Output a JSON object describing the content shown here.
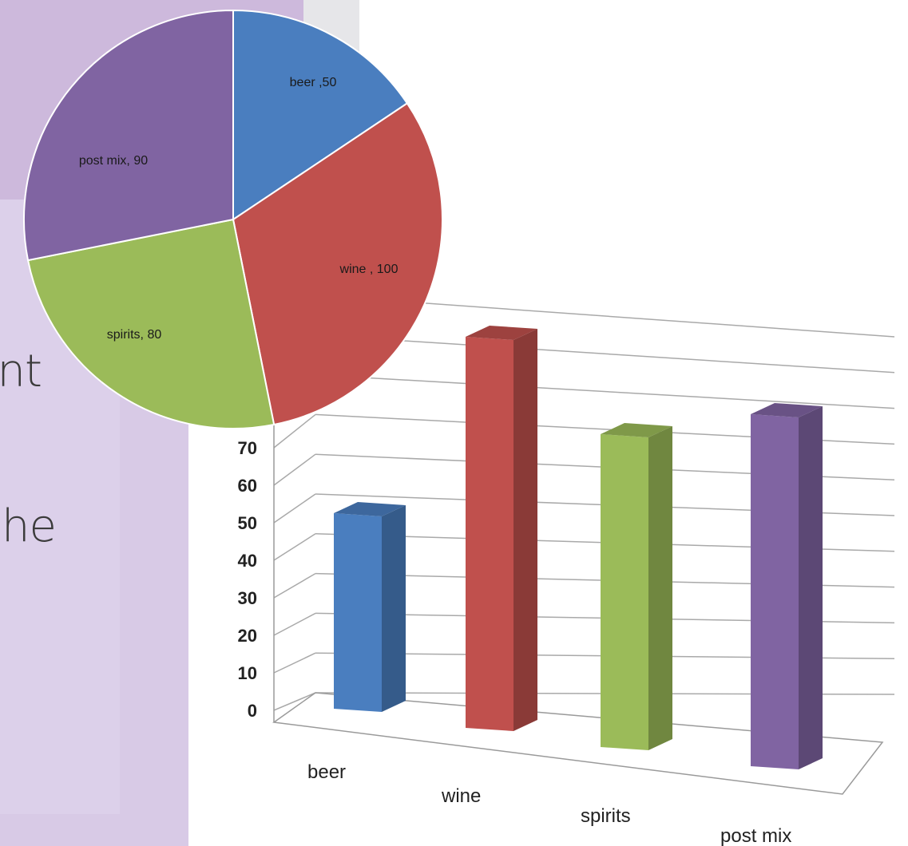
{
  "slide": {
    "fragment_1": "nt",
    "fragment_2": "he"
  },
  "chart_data": [
    {
      "type": "pie",
      "categories": [
        "beer",
        "wine",
        "spirits",
        "post mix"
      ],
      "values": [
        50,
        100,
        80,
        90
      ],
      "data_labels": [
        "beer ,50",
        "wine , 100",
        "spirits, 80",
        "post mix, 90"
      ],
      "colors": [
        "#4a7ebf",
        "#c0504d",
        "#9bbb59",
        "#8064a2"
      ],
      "title": "",
      "legend": "none"
    },
    {
      "type": "bar",
      "style": "3d-column",
      "categories": [
        "beer",
        "wine",
        "spirits",
        "post mix"
      ],
      "values": [
        50,
        100,
        80,
        90
      ],
      "colors": [
        "#4a7ebf",
        "#c0504d",
        "#9bbb59",
        "#8064a2"
      ],
      "y_ticks": [
        0,
        10,
        20,
        30,
        40,
        50,
        60,
        70
      ],
      "ylim": [
        0,
        100
      ],
      "grid": true,
      "title": "",
      "xlabel": "",
      "ylabel": "",
      "legend": "none"
    }
  ]
}
